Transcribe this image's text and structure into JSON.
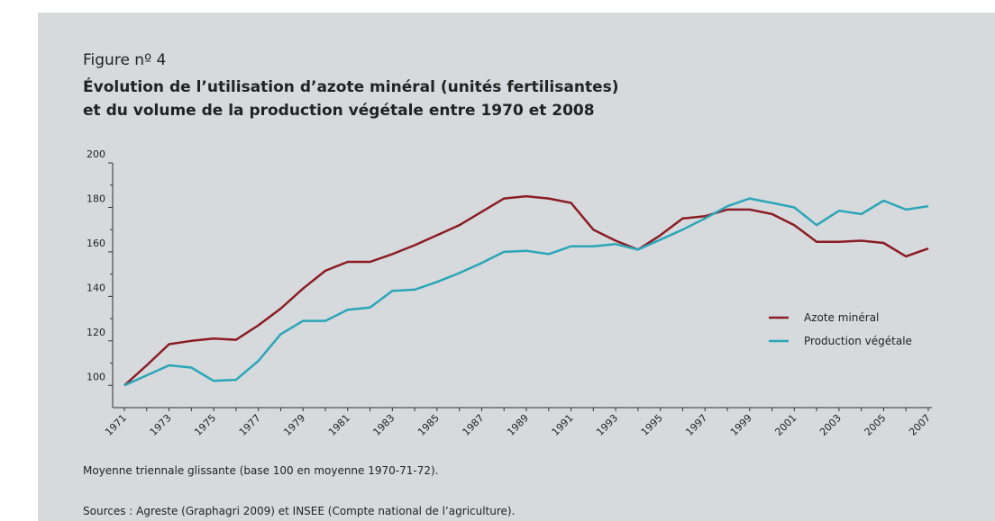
{
  "chart_data": {
    "type": "line",
    "figure_label": "Figure nº 4",
    "title": [
      "Évolution de l’utilisation d’azote minéral (unités fertilisantes)",
      "et du volume de la production végétale entre 1970 et 2008"
    ],
    "categories": [
      "1971",
      null,
      "1973",
      null,
      "1975",
      null,
      "1977",
      null,
      "1979",
      null,
      "1981",
      null,
      "1983",
      null,
      "1985",
      null,
      "1987",
      null,
      "1989",
      null,
      "1991",
      null,
      "1993",
      null,
      "1995",
      null,
      "1997",
      null,
      "1999",
      null,
      "2001",
      null,
      "2003",
      null,
      "2005",
      null,
      "2007"
    ],
    "series": [
      {
        "name": "Azote minéral",
        "color": "#8b1c24",
        "values": [
          100,
          109,
          118.5,
          120,
          121,
          120.5,
          127,
          134.5,
          143.5,
          151.5,
          155.5,
          155.5,
          159,
          163,
          167.5,
          172,
          178,
          184,
          185,
          184,
          182,
          170,
          165,
          161,
          167.5,
          175,
          176,
          179,
          179,
          177,
          172,
          164.5,
          164.5,
          165,
          164,
          158,
          161.5
        ]
      },
      {
        "name": "Production végétale",
        "color": "#2ba6b7",
        "values": [
          100,
          104.5,
          109,
          108,
          102,
          102.5,
          111,
          123,
          129,
          129,
          134,
          135,
          142.5,
          143,
          146.5,
          150.5,
          155,
          160,
          160.5,
          159,
          162.5,
          162.5,
          163.5,
          161,
          165.5,
          170,
          175,
          180.5,
          184,
          182,
          180,
          172,
          178.5,
          177,
          183,
          179,
          180.5
        ]
      }
    ],
    "ylim": [
      90,
      200
    ],
    "yticks": [
      100,
      120,
      140,
      160,
      180,
      200
    ],
    "yminor_ticks": [
      110,
      130,
      150,
      170,
      190
    ],
    "legend": "right",
    "notes": [
      "Moyenne triennale glissante (base 100 en moyenne 1970-71-72).",
      "Sources : Agreste (Graphagri 2009) et INSEE (Compte national de l’agriculture)."
    ]
  }
}
